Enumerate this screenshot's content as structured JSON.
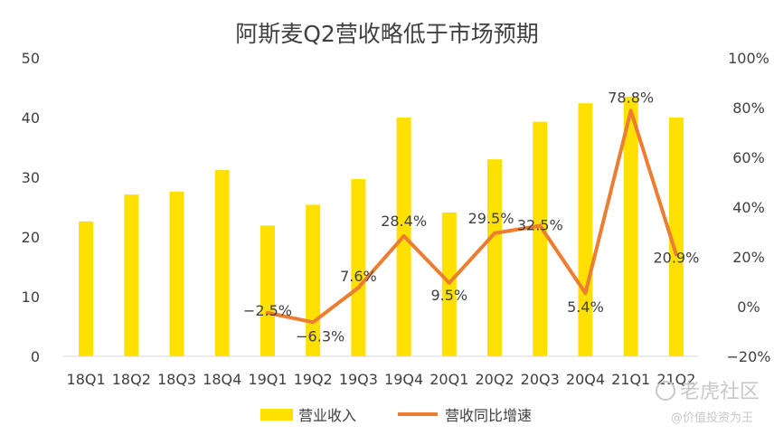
{
  "chart_data": {
    "type": "bar",
    "title": "阿斯麦Q2营收略低于市场预期",
    "categories": [
      "18Q1",
      "18Q2",
      "18Q3",
      "18Q4",
      "19Q1",
      "19Q2",
      "19Q3",
      "19Q4",
      "20Q1",
      "20Q2",
      "20Q3",
      "20Q4",
      "21Q1",
      "21Q2"
    ],
    "series": [
      {
        "name": "营业收入",
        "type": "bar",
        "axis": "left",
        "color": "#FFE000",
        "values": [
          22.6,
          27.1,
          27.6,
          31.2,
          21.9,
          25.4,
          29.7,
          40.0,
          24.1,
          33.0,
          39.3,
          42.4,
          43.5,
          40.0
        ]
      },
      {
        "name": "营收同比增速",
        "type": "line",
        "axis": "right",
        "color": "#ED7D31",
        "values": [
          null,
          null,
          null,
          null,
          -2.5,
          -6.3,
          7.6,
          28.4,
          9.5,
          29.5,
          32.5,
          5.4,
          78.8,
          20.9
        ],
        "labels": [
          "",
          "",
          "",
          "",
          "−2.5%",
          "−6.3%",
          "7.6%",
          "28.4%",
          "9.5%",
          "29.5%",
          "32.5%",
          "5.4%",
          "78.8%",
          "20.9%"
        ]
      }
    ],
    "y_left": {
      "ylim": [
        0,
        50
      ],
      "ticks": [
        "0",
        "10",
        "20",
        "30",
        "40",
        "50"
      ]
    },
    "y_right": {
      "ylim": [
        -20,
        100
      ],
      "ticks": [
        "−20%",
        "0%",
        "20%",
        "40%",
        "60%",
        "80%",
        "100%"
      ]
    },
    "grid": false,
    "legend": "bottom"
  },
  "watermark": {
    "brand": "老虎社区",
    "author": "@价值投资为王",
    "color": "#c8c8c8"
  }
}
